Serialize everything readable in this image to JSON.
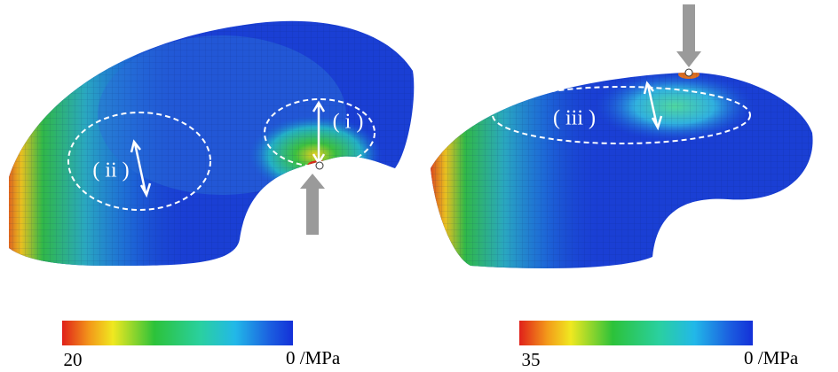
{
  "panels": [
    {
      "regions": [
        {
          "label": "( i )"
        },
        {
          "label": "( ii )"
        }
      ],
      "colorbar": {
        "max_label": "20",
        "min_label": "0 /MPa"
      }
    },
    {
      "regions": [
        {
          "label": "( iii )"
        }
      ],
      "colorbar": {
        "max_label": "35",
        "min_label": "0 /MPa"
      }
    }
  ]
}
